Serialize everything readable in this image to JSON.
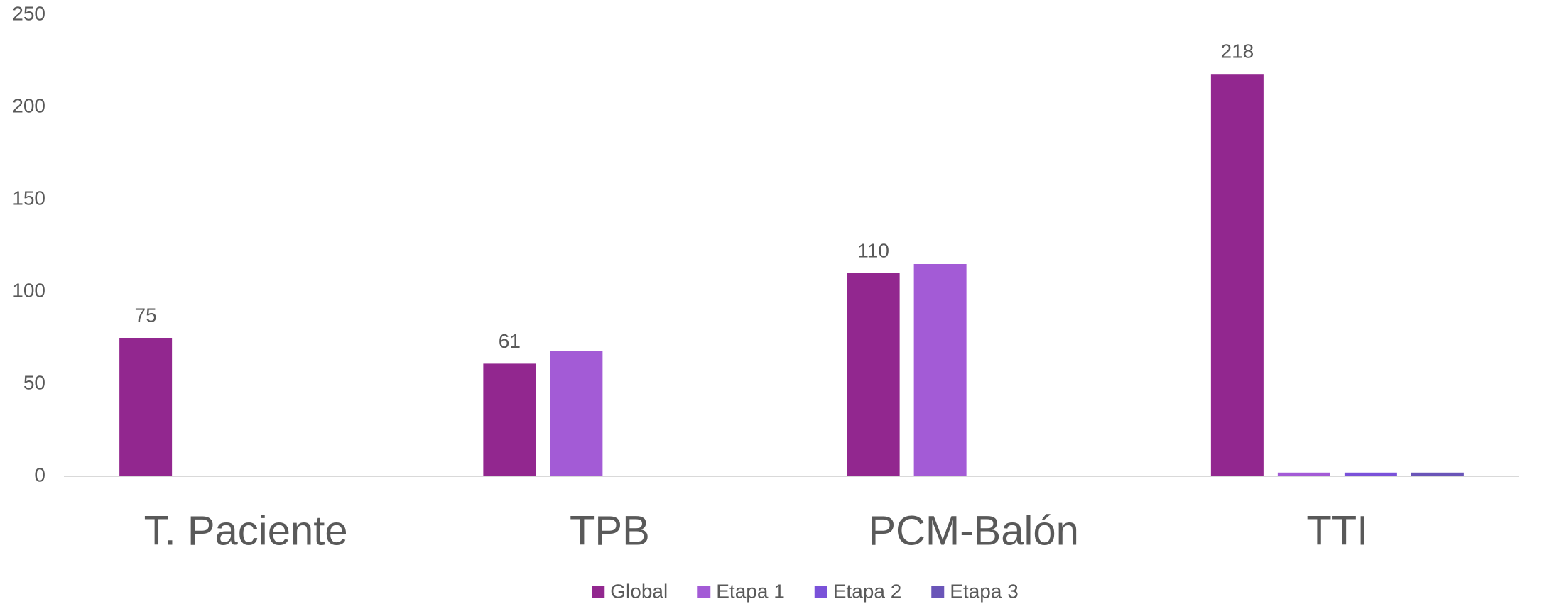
{
  "chart_data": {
    "type": "bar",
    "categories": [
      "T. Paciente",
      "TPB",
      "PCM-Balón",
      "TTI"
    ],
    "series": [
      {
        "name": "Global",
        "color": "#92278f",
        "values": [
          75,
          61,
          110,
          218
        ]
      },
      {
        "name": "Etapa 1",
        "color": "#a35bd6",
        "values": [
          0,
          68,
          115,
          2
        ]
      },
      {
        "name": "Etapa 2",
        "color": "#7a52d9",
        "values": [
          0,
          0,
          0,
          2
        ]
      },
      {
        "name": "Etapa 3",
        "color": "#6a55b8",
        "values": [
          0,
          0,
          0,
          2
        ]
      }
    ],
    "data_labels_series": 0,
    "ylim": [
      0,
      250
    ],
    "yticks": [
      0,
      50,
      100,
      150,
      200,
      250
    ],
    "grid": false,
    "legend": "bottom"
  }
}
